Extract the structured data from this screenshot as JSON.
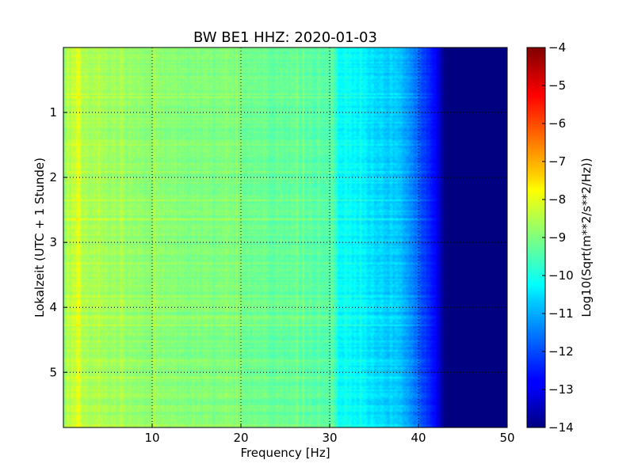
{
  "chart_data": {
    "type": "heatmap",
    "title": "BW BE1 HHZ: 2020-01-03",
    "xlabel": "Frequency [Hz]",
    "ylabel": "Lokalzeit (UTC + 1 Stunde)",
    "xlim": [
      0,
      50
    ],
    "ylim": [
      5.85,
      0.0
    ],
    "xticks": [
      10,
      20,
      30,
      40,
      50
    ],
    "yticks": [
      1,
      2,
      3,
      4,
      5
    ],
    "grid": true,
    "colormap": "jet",
    "colorbar": {
      "label": "Log10(Sqrt(m**2/s**2/Hz))",
      "range": [
        -14,
        -4
      ],
      "ticks": [
        -4,
        -5,
        -6,
        -7,
        -8,
        -9,
        -10,
        -11,
        -12,
        -13,
        -14
      ]
    },
    "freq_profile": [
      {
        "f": 0.0,
        "v": -9.0
      },
      {
        "f": 1.0,
        "v": -8.3
      },
      {
        "f": 3.0,
        "v": -8.6
      },
      {
        "f": 10.0,
        "v": -8.9
      },
      {
        "f": 20.0,
        "v": -9.1
      },
      {
        "f": 28.0,
        "v": -9.35
      },
      {
        "f": 30.5,
        "v": -9.5
      },
      {
        "f": 31.0,
        "v": -10.2
      },
      {
        "f": 34.0,
        "v": -10.4
      },
      {
        "f": 38.0,
        "v": -10.9
      },
      {
        "f": 40.0,
        "v": -11.8
      },
      {
        "f": 42.0,
        "v": -12.8
      },
      {
        "f": 43.0,
        "v": -14.0
      },
      {
        "f": 50.0,
        "v": -14.0
      }
    ]
  }
}
